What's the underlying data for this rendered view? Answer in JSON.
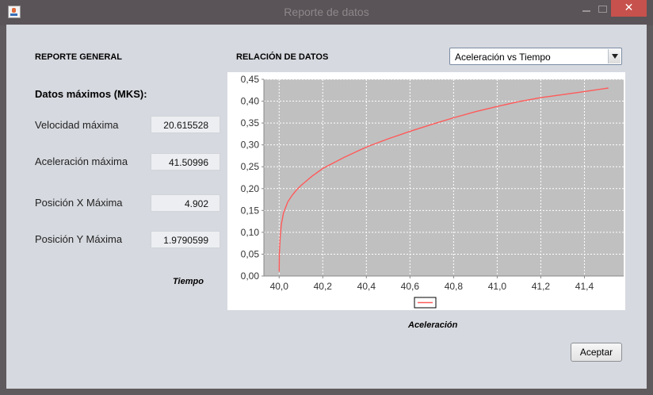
{
  "window": {
    "title": "Reporte de datos",
    "close_glyph": "✕"
  },
  "report": {
    "heading": "REPORTE GENERAL",
    "subheading": "Datos máximos (MKS):",
    "rows": [
      {
        "label": "Velocidad máxima",
        "value": "20.615528"
      },
      {
        "label": "Aceleración máxima",
        "value": "41.50996"
      },
      {
        "label": "Posición X Máxima",
        "value": "4.902"
      },
      {
        "label": "Posición Y Máxima",
        "value": "1.9790599"
      }
    ],
    "y_axis_caption": "Tiempo"
  },
  "relation": {
    "heading": "RELACIÓN DE DATOS",
    "selected_option": "Aceleración vs Tiempo",
    "x_axis_caption": "Aceleración"
  },
  "buttons": {
    "accept": "Aceptar"
  },
  "colors": {
    "series_line": "#ff5a5a",
    "plot_background": "#c0c0c0",
    "close_button": "#c7514c"
  },
  "icons": {
    "app": "java-cup-icon",
    "minimize": "minimize-icon",
    "maximize": "maximize-icon",
    "close": "close-icon",
    "dropdown": "chevron-down-icon"
  },
  "chart_data": {
    "type": "line",
    "title": "",
    "xlabel": "Aceleración",
    "ylabel": "Tiempo",
    "xlim": [
      39.93,
      41.58
    ],
    "ylim": [
      0.0,
      0.45
    ],
    "x_ticks": [
      "40,0",
      "40,2",
      "40,4",
      "40,6",
      "40,8",
      "41,0",
      "41,2",
      "41,4"
    ],
    "x_tick_values": [
      40.0,
      40.2,
      40.4,
      40.6,
      40.8,
      41.0,
      41.2,
      41.4
    ],
    "y_ticks": [
      "0,00",
      "0,05",
      "0,10",
      "0,15",
      "0,20",
      "0,25",
      "0,30",
      "0,35",
      "0,40",
      "0,45"
    ],
    "y_tick_values": [
      0.0,
      0.05,
      0.1,
      0.15,
      0.2,
      0.25,
      0.3,
      0.35,
      0.4,
      0.45
    ],
    "grid": true,
    "legend": "bottom-center",
    "series": [
      {
        "x": [
          40.0,
          40.001,
          40.005,
          40.01,
          40.02,
          40.04,
          40.06,
          40.08,
          40.1,
          40.15,
          40.2,
          40.3,
          40.4,
          40.5,
          40.6,
          40.7,
          40.8,
          40.9,
          41.0,
          41.1,
          41.2,
          41.3,
          41.4,
          41.51
        ],
        "y": [
          0.01,
          0.05,
          0.09,
          0.118,
          0.145,
          0.17,
          0.185,
          0.197,
          0.207,
          0.228,
          0.246,
          0.272,
          0.295,
          0.314,
          0.331,
          0.347,
          0.362,
          0.376,
          0.388,
          0.399,
          0.408,
          0.415,
          0.422,
          0.43
        ]
      }
    ]
  }
}
